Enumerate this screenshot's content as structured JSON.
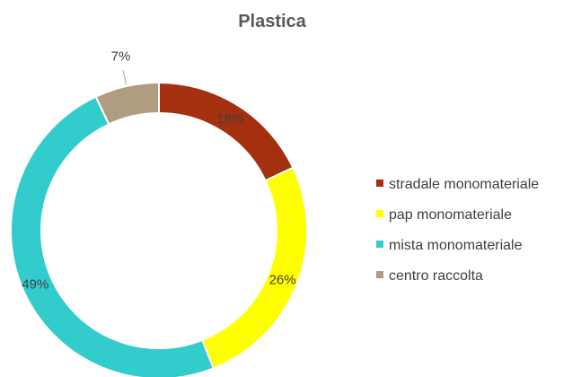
{
  "chart_data": {
    "type": "pie",
    "title": "Plastica",
    "categories": [
      "stradale monomateriale",
      "pap monomateriale",
      "mista monomateriale",
      "centro raccolta"
    ],
    "values": [
      18,
      26,
      49,
      7
    ],
    "labels": [
      "18%",
      "26%",
      "49%",
      "7%"
    ],
    "colors": [
      "#A5300F",
      "#FFFF00",
      "#33CCCC",
      "#B09C7F"
    ],
    "legend_position": "right"
  }
}
